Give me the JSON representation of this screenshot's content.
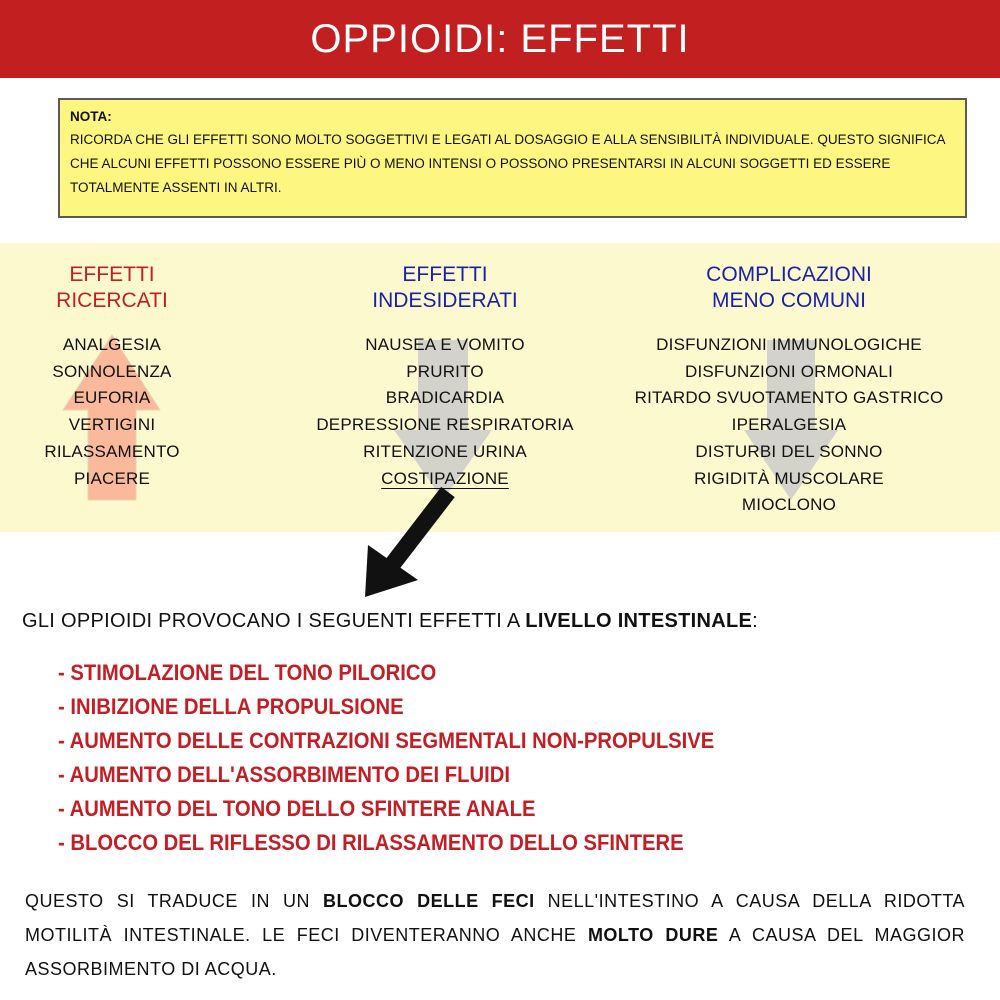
{
  "title": "OPPIOIDI: EFFETTI",
  "note": {
    "label": "NOTA:",
    "text": "RICORDA CHE GLI EFFETTI SONO MOLTO SOGGETTIVI E LEGATI AL DOSAGGIO E ALLA SENSIBILITÀ INDIVIDUALE. QUESTO SIGNIFICA CHE ALCUNI EFFETTI POSSONO ESSERE PIÙ O MENO INTENSI O POSSONO PRESENTARSI IN ALCUNI SOGGETTI ED ESSERE TOTALMENTE ASSENTI IN ALTRI."
  },
  "columns": [
    {
      "heading_1": "EFFETTI",
      "heading_2": "RICERCATI",
      "color": "#c41e25",
      "arrow": "up-arrow",
      "items": [
        "ANALGESIA",
        "SONNOLENZA",
        "EUFORIA",
        "VERTIGINI",
        "RILASSAMENTO",
        "PIACERE"
      ]
    },
    {
      "heading_1": "EFFETTI",
      "heading_2": "INDESIDERATI",
      "color": "#1a22a8",
      "arrow": "down-arrow",
      "items": [
        "NAUSEA E VOMITO",
        "PRURITO",
        "BRADICARDIA",
        "DEPRESSIONE RESPIRATORIA",
        "RITENZIONE URINA",
        "COSTIPAZIONE"
      ]
    },
    {
      "heading_1": "COMPLICAZIONI",
      "heading_2": "MENO COMUNI",
      "color": "#1a22a8",
      "arrow": "down-arrow",
      "items": [
        "DISFUNZIONI IMMUNOLOGICHE",
        "DISFUNZIONI ORMONALI",
        "RITARDO SVUOTAMENTO GASTRICO",
        "IPERALGESIA",
        "DISTURBI DEL SONNO",
        "RIGIDITÀ MUSCOLARE",
        "MIOCLONO"
      ]
    }
  ],
  "intestinal": {
    "intro": "GLI OPPIOIDI PROVOCANO I SEGUENTI EFFETTI A",
    "intro_bold": "LIVELLO INTESTINALE",
    "intro_end": ":",
    "effects": [
      "- STIMOLAZIONE DEL TONO PILORICO",
      "- INIBIZIONE DELLA PROPULSIONE",
      "- AUMENTO DELLE CONTRAZIONI SEGMENTALI NON-PROPULSIVE",
      "- AUMENTO DELL'ASSORBIMENTO DEI FLUIDI",
      "- AUMENTO DEL TONO DELLO SFINTERE ANALE",
      "- BLOCCO DEL RIFLESSO DI RILASSAMENTO DELLO SFINTERE"
    ]
  },
  "conclusion": {
    "p1": "QUESTO SI TRADUCE IN UN",
    "b1": "BLOCCO DELLE FECI",
    "p2": "NELL'INTESTINO A CAUSA DELLA RIDOTTA MOTILITÀ INTESTINALE. LE FECI DIVENTERANNO ANCHE",
    "b2": "MOLTO DURE",
    "p3": "A CAUSA DEL MAGGIOR ASSORBIMENTO DI ACQUA."
  },
  "colors": {
    "title_bar": "#c11f20",
    "note_bg": "#fdf680",
    "band_bg": "#fdf9cf",
    "red_text": "#c41e25",
    "blue_text": "#1a22a8"
  }
}
